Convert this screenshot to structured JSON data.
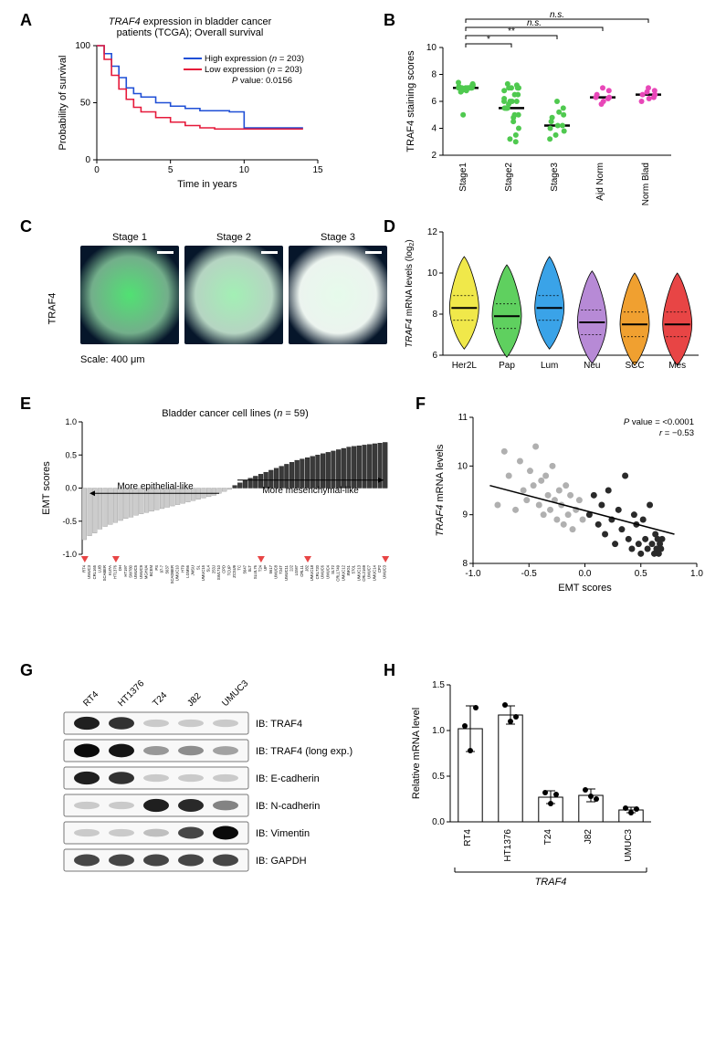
{
  "panelA": {
    "label": "A",
    "title_line1": "TRAF4 expression in bladder cancer",
    "title_line2": "patients (TCGA); Overall survival",
    "title_italic_word": "TRAF4",
    "ylabel": "Probability of survival",
    "xlabel": "Time in years",
    "legend_high": "High expression (n = 203)",
    "legend_low": "Low expression (n = 203)",
    "pvalue": "P value: 0.0156",
    "color_high": "#1f4fd6",
    "color_low": "#e6193a",
    "xlim": [
      0,
      15
    ],
    "xtick_step": 5,
    "ylim": [
      0,
      100
    ],
    "ytick_step": 50,
    "high_curve": [
      [
        0,
        100
      ],
      [
        0.5,
        93
      ],
      [
        1,
        82
      ],
      [
        1.5,
        72
      ],
      [
        2,
        63
      ],
      [
        2.5,
        58
      ],
      [
        3,
        55
      ],
      [
        4,
        50
      ],
      [
        5,
        47
      ],
      [
        6,
        45
      ],
      [
        7,
        43
      ],
      [
        8,
        43
      ],
      [
        9,
        42
      ],
      [
        10,
        28
      ],
      [
        14,
        28
      ]
    ],
    "low_curve": [
      [
        0,
        100
      ],
      [
        0.5,
        88
      ],
      [
        1,
        74
      ],
      [
        1.5,
        62
      ],
      [
        2,
        53
      ],
      [
        2.5,
        46
      ],
      [
        3,
        42
      ],
      [
        4,
        37
      ],
      [
        5,
        33
      ],
      [
        6,
        30
      ],
      [
        7,
        28
      ],
      [
        8,
        27
      ],
      [
        9,
        27
      ],
      [
        10,
        27
      ],
      [
        14,
        27
      ]
    ]
  },
  "panelB": {
    "label": "B",
    "ylabel": "TRAF4 staining scores",
    "categories": [
      "Stage1",
      "Stage2",
      "Stage3",
      "Ajd Norm",
      "Norm Blad"
    ],
    "medians": [
      7.0,
      5.5,
      4.2,
      6.3,
      6.5
    ],
    "ylim": [
      2,
      10
    ],
    "ytick_step": 2,
    "dot_color_green": "#4fc94f",
    "dot_color_magenta": "#e847b8",
    "sig_labels": [
      "*",
      "**",
      "n.s.",
      "n.s."
    ],
    "sig_italic": "n.s.",
    "points": {
      "Stage1": [
        7,
        7,
        7.2,
        6.8,
        7,
        7.1,
        6.9,
        7,
        7.3,
        7,
        6.7,
        7,
        5,
        7,
        7.2,
        7,
        6.8,
        7.4,
        7
      ],
      "Stage2": [
        7,
        7,
        6.5,
        6,
        5.5,
        5.5,
        6,
        7.2,
        5,
        4.5,
        5.5,
        6.8,
        7,
        3.5,
        4,
        5,
        5.5,
        6,
        7.3,
        6.5,
        7,
        3,
        5.8,
        6.2,
        5.5,
        4.8,
        7,
        6,
        3.2
      ],
      "Stage3": [
        6,
        5.5,
        5,
        4.2,
        4.5,
        4,
        3.5,
        4.2,
        3.8,
        5.2,
        4.8,
        3.2
      ],
      "Ajd Norm": [
        7,
        6.8,
        6.3,
        6,
        6.5,
        6.3,
        5.8,
        6.2
      ],
      "Norm Blad": [
        7,
        6.8,
        6.5,
        6.2,
        6.5,
        6,
        6.7,
        6.3
      ]
    }
  },
  "panelC": {
    "label": "C",
    "row_label": "TRAF4",
    "stages": [
      "Stage 1",
      "Stage 2",
      "Stage 3"
    ],
    "scale_text": "Scale: 400 μm",
    "green_intensity": [
      0.85,
      0.45,
      0.12
    ],
    "bg": "#06162a"
  },
  "panelD": {
    "label": "D",
    "ylabel": "TRAF4 mRNA levels (log₂)",
    "ylabel_italic": "TRAF4",
    "categories": [
      "Her2L",
      "Pap",
      "Lum",
      "Neu",
      "SCC",
      "Mes"
    ],
    "colors": [
      "#f0e84a",
      "#5fd05f",
      "#3aa3e8",
      "#b78ad6",
      "#f0a030",
      "#e84545"
    ],
    "medians": [
      8.3,
      7.9,
      8.3,
      7.6,
      7.5,
      7.5
    ],
    "ylim": [
      6,
      12
    ],
    "yticks": [
      6,
      8,
      10,
      12
    ]
  },
  "panelE": {
    "label": "E",
    "title": "Bladder cancer cell lines (n = 59)",
    "ylabel": "EMT scores",
    "ylim": [
      -1.0,
      1.0
    ],
    "ytick_step": 0.5,
    "annotation_epi": "More epithelial-like",
    "annotation_mes": "More mesenchymal-like",
    "color_neg": "#cccccc",
    "color_pos": "#3a3a3a",
    "marker_color": "#e84545",
    "values": [
      -0.78,
      -0.72,
      -0.68,
      -0.62,
      -0.58,
      -0.55,
      -0.52,
      -0.49,
      -0.46,
      -0.44,
      -0.41,
      -0.39,
      -0.37,
      -0.35,
      -0.33,
      -0.31,
      -0.29,
      -0.27,
      -0.25,
      -0.23,
      -0.21,
      -0.19,
      -0.17,
      -0.15,
      -0.13,
      -0.11,
      -0.08,
      -0.05,
      -0.02,
      0.04,
      0.08,
      0.12,
      0.15,
      0.18,
      0.21,
      0.24,
      0.27,
      0.3,
      0.33,
      0.36,
      0.39,
      0.42,
      0.44,
      0.46,
      0.48,
      0.5,
      0.52,
      0.54,
      0.56,
      0.58,
      0.6,
      0.62,
      0.63,
      0.64,
      0.65,
      0.66,
      0.67,
      0.68,
      0.69
    ],
    "labels": [
      "RT4",
      "UMUC3",
      "CRL165",
      "LUB",
      "SCABER",
      "KU7A",
      "HT1376",
      "DH",
      "HT197",
      "SW780",
      "UMUC5",
      "UMUC9",
      "MGHU4",
      "BCEM",
      "PS",
      "97-7",
      "5637",
      "SCADBER",
      "UMUC10",
      "HT9",
      "LGM56",
      "JMSU",
      "SL",
      "UMUC15",
      "SL4",
      "253J",
      "SW1710",
      "CPD",
      "TCUP",
      "ZCSU9",
      "TC",
      "5647",
      "SLT",
      "SLUL76",
      "T24",
      "UP",
      "5617",
      "UMUC8",
      "T24T",
      "UMUC11",
      "2J2",
      "LGM7",
      "CRL11",
      "J82",
      "UMUC18",
      "CRL720",
      "UMUC6",
      "UMUC4",
      "SLT2",
      "CRL1749",
      "UMUC12",
      "8MG1",
      "5701",
      "UMUC13",
      "CRL2169",
      "UMUC7",
      "UMUC14",
      "CP2",
      "UMUC3"
    ],
    "marked_indices": [
      0,
      6,
      34,
      43,
      58
    ]
  },
  "panelF": {
    "label": "F",
    "ylabel": "TRAF4 mRNA levels",
    "ylabel_italic": "TRAF4",
    "xlabel": "EMT scores",
    "pvalue": "P value = <0.0001",
    "rvalue": "r = −0.53",
    "xlim": [
      -1.0,
      1.0
    ],
    "xtick_step": 0.5,
    "ylim": [
      8,
      11
    ],
    "ytick_step": 1,
    "color_light": "#b0b0b0",
    "color_dark": "#2a2a2a",
    "regression": [
      [
        -0.85,
        9.6
      ],
      [
        0.8,
        8.6
      ]
    ],
    "points_light": [
      [
        -0.78,
        9.2
      ],
      [
        -0.72,
        10.3
      ],
      [
        -0.68,
        9.8
      ],
      [
        -0.62,
        9.1
      ],
      [
        -0.58,
        10.1
      ],
      [
        -0.55,
        9.5
      ],
      [
        -0.52,
        9.3
      ],
      [
        -0.49,
        9.9
      ],
      [
        -0.46,
        9.6
      ],
      [
        -0.44,
        10.4
      ],
      [
        -0.41,
        9.2
      ],
      [
        -0.39,
        9.7
      ],
      [
        -0.37,
        9.0
      ],
      [
        -0.35,
        9.8
      ],
      [
        -0.33,
        9.4
      ],
      [
        -0.31,
        9.1
      ],
      [
        -0.29,
        10.0
      ],
      [
        -0.27,
        9.3
      ],
      [
        -0.25,
        8.9
      ],
      [
        -0.23,
        9.5
      ],
      [
        -0.21,
        9.2
      ],
      [
        -0.19,
        8.8
      ],
      [
        -0.17,
        9.6
      ],
      [
        -0.15,
        9.0
      ],
      [
        -0.13,
        9.4
      ],
      [
        -0.11,
        8.7
      ],
      [
        -0.08,
        9.1
      ],
      [
        -0.05,
        9.3
      ],
      [
        -0.02,
        8.9
      ]
    ],
    "points_dark": [
      [
        0.04,
        9.0
      ],
      [
        0.08,
        9.4
      ],
      [
        0.12,
        8.8
      ],
      [
        0.15,
        9.2
      ],
      [
        0.18,
        8.6
      ],
      [
        0.21,
        9.5
      ],
      [
        0.24,
        8.9
      ],
      [
        0.27,
        8.4
      ],
      [
        0.3,
        9.1
      ],
      [
        0.33,
        8.7
      ],
      [
        0.36,
        9.8
      ],
      [
        0.39,
        8.5
      ],
      [
        0.42,
        8.3
      ],
      [
        0.44,
        9.0
      ],
      [
        0.46,
        8.8
      ],
      [
        0.48,
        8.4
      ],
      [
        0.5,
        8.2
      ],
      [
        0.52,
        8.9
      ],
      [
        0.54,
        8.5
      ],
      [
        0.56,
        8.3
      ],
      [
        0.58,
        9.2
      ],
      [
        0.6,
        8.4
      ],
      [
        0.62,
        8.2
      ],
      [
        0.63,
        8.6
      ],
      [
        0.64,
        8.3
      ],
      [
        0.65,
        8.5
      ],
      [
        0.66,
        8.2
      ],
      [
        0.67,
        8.4
      ],
      [
        0.68,
        8.3
      ],
      [
        0.69,
        8.5
      ]
    ]
  },
  "panelG": {
    "label": "G",
    "lanes": [
      "RT4",
      "HT1376",
      "T24",
      "J82",
      "UMUC3"
    ],
    "rows": [
      {
        "label": "IB: TRAF4",
        "intensity": [
          0.9,
          0.8,
          0.05,
          0.05,
          0.05
        ]
      },
      {
        "label": "IB: TRAF4 (long exp.)",
        "intensity": [
          1.0,
          0.95,
          0.3,
          0.35,
          0.25
        ]
      },
      {
        "label": "IB: E-cadherin",
        "intensity": [
          0.9,
          0.8,
          0.05,
          0.05,
          0.05
        ]
      },
      {
        "label": "IB: N-cadherin",
        "intensity": [
          0.05,
          0.05,
          0.9,
          0.85,
          0.4
        ]
      },
      {
        "label": "IB: Vimentin",
        "intensity": [
          0.05,
          0.05,
          0.1,
          0.7,
          1.0
        ]
      },
      {
        "label": "IB: GAPDH",
        "intensity": [
          0.7,
          0.7,
          0.7,
          0.7,
          0.7
        ]
      }
    ]
  },
  "panelH": {
    "label": "H",
    "ylabel": "Relative mRNA level",
    "categories": [
      "RT4",
      "HT1376",
      "T24",
      "J82",
      "UMUC3"
    ],
    "means": [
      1.02,
      1.17,
      0.27,
      0.29,
      0.13
    ],
    "sds": [
      0.25,
      0.1,
      0.07,
      0.07,
      0.03
    ],
    "ylim": [
      0.0,
      1.5
    ],
    "ytick_step": 0.5,
    "bar_fill": "#ffffff",
    "bar_stroke": "#000000",
    "gene": "TRAF4",
    "points": {
      "RT4": [
        1.05,
        0.78,
        1.25
      ],
      "HT1376": [
        1.28,
        1.1,
        1.15
      ],
      "T24": [
        0.32,
        0.2,
        0.3
      ],
      "J82": [
        0.35,
        0.28,
        0.25
      ],
      "UMUC3": [
        0.15,
        0.1,
        0.14
      ]
    }
  }
}
